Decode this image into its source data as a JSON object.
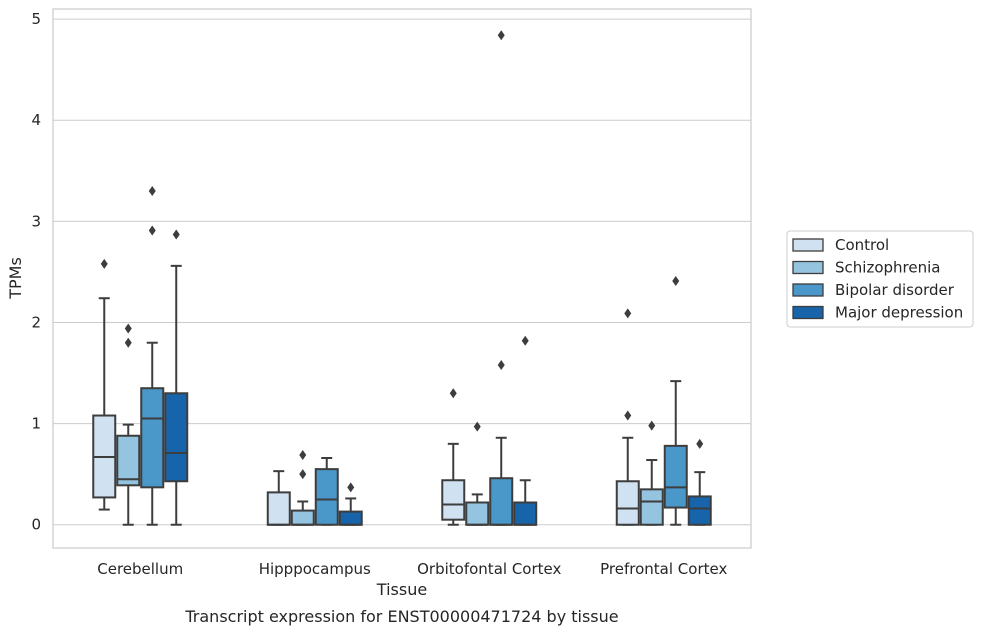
{
  "chart_data": {
    "type": "box",
    "title": "",
    "caption": "Transcript expression for ENST00000471724 by tissue",
    "xlabel": "Tissue",
    "ylabel": "TPMs",
    "ylim": [
      -0.23,
      5.1
    ],
    "yticks": [
      "0",
      "1",
      "2",
      "3",
      "4",
      "5"
    ],
    "grid": "horizontal",
    "legend_position": "right",
    "categories": [
      "Cerebellum",
      "Hipppocampus",
      "Orbitofontal Cortex",
      "Prefrontal Cortex"
    ],
    "series": [
      {
        "name": "Control",
        "color": "#d0e1f2",
        "boxes": [
          {
            "whislo": 0.15,
            "q1": 0.27,
            "med": 0.67,
            "q3": 1.08,
            "whishi": 2.24,
            "fliers": [
              2.58
            ]
          },
          {
            "whislo": 0.0,
            "q1": 0.0,
            "med": 0.0,
            "q3": 0.32,
            "whishi": 0.53,
            "fliers": []
          },
          {
            "whislo": 0.0,
            "q1": 0.05,
            "med": 0.2,
            "q3": 0.44,
            "whishi": 0.8,
            "fliers": [
              1.3
            ]
          },
          {
            "whislo": 0.0,
            "q1": 0.0,
            "med": 0.16,
            "q3": 0.43,
            "whishi": 0.86,
            "fliers": [
              1.08,
              2.09
            ]
          }
        ]
      },
      {
        "name": "Schizophrenia",
        "color": "#94c4df",
        "boxes": [
          {
            "whislo": 0.0,
            "q1": 0.39,
            "med": 0.45,
            "q3": 0.88,
            "whishi": 0.99,
            "fliers": [
              1.8,
              1.94
            ]
          },
          {
            "whislo": 0.0,
            "q1": 0.0,
            "med": 0.0,
            "q3": 0.14,
            "whishi": 0.23,
            "fliers": [
              0.5,
              0.69
            ]
          },
          {
            "whislo": 0.0,
            "q1": 0.0,
            "med": 0.0,
            "q3": 0.22,
            "whishi": 0.3,
            "fliers": [
              0.97
            ]
          },
          {
            "whislo": 0.0,
            "q1": 0.0,
            "med": 0.23,
            "q3": 0.35,
            "whishi": 0.64,
            "fliers": [
              0.98
            ]
          }
        ]
      },
      {
        "name": "Bipolar disorder",
        "color": "#4a98c9",
        "boxes": [
          {
            "whislo": 0.0,
            "q1": 0.37,
            "med": 1.05,
            "q3": 1.35,
            "whishi": 1.8,
            "fliers": [
              2.91,
              3.3
            ]
          },
          {
            "whislo": 0.0,
            "q1": 0.0,
            "med": 0.25,
            "q3": 0.55,
            "whishi": 0.66,
            "fliers": []
          },
          {
            "whislo": 0.0,
            "q1": 0.0,
            "med": 0.0,
            "q3": 0.46,
            "whishi": 0.86,
            "fliers": [
              1.58,
              4.84
            ]
          },
          {
            "whislo": 0.0,
            "q1": 0.17,
            "med": 0.37,
            "q3": 0.78,
            "whishi": 1.42,
            "fliers": [
              2.41
            ]
          }
        ]
      },
      {
        "name": "Major depression",
        "color": "#1764ab",
        "boxes": [
          {
            "whislo": 0.0,
            "q1": 0.43,
            "med": 0.71,
            "q3": 1.3,
            "whishi": 2.56,
            "fliers": [
              2.87
            ]
          },
          {
            "whislo": 0.0,
            "q1": 0.0,
            "med": 0.0,
            "q3": 0.13,
            "whishi": 0.26,
            "fliers": [
              0.37
            ]
          },
          {
            "whislo": 0.0,
            "q1": 0.0,
            "med": 0.0,
            "q3": 0.22,
            "whishi": 0.44,
            "fliers": [
              1.82
            ]
          },
          {
            "whislo": 0.0,
            "q1": 0.0,
            "med": 0.16,
            "q3": 0.28,
            "whishi": 0.52,
            "fliers": [
              0.8
            ]
          }
        ]
      }
    ]
  }
}
